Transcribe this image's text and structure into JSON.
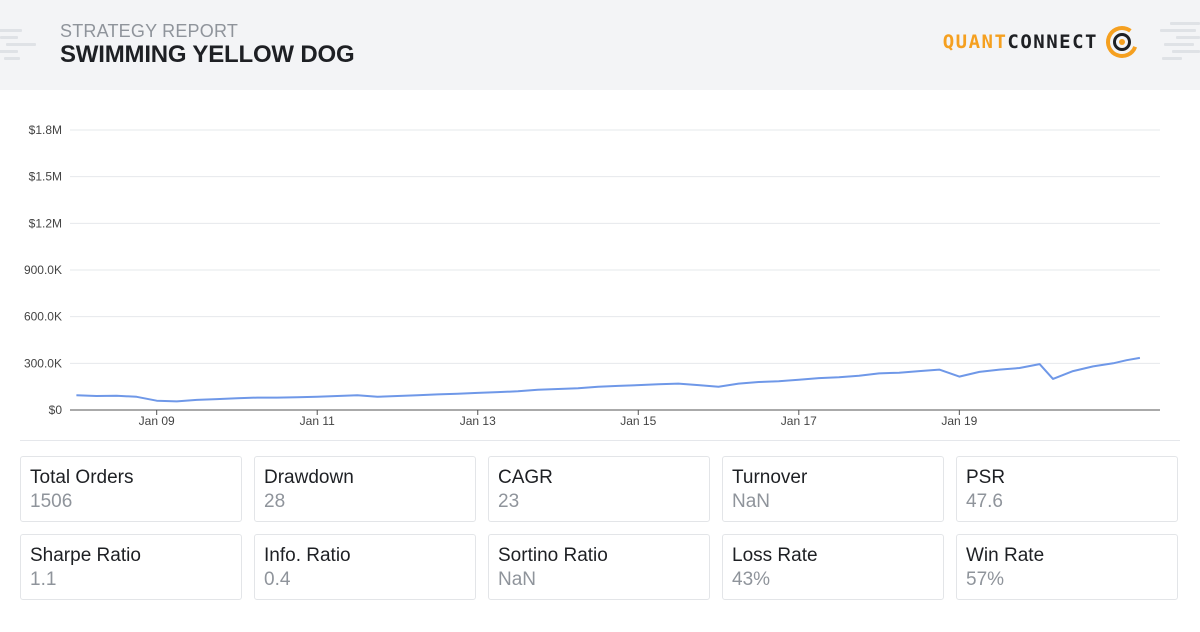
{
  "header": {
    "subtitle": "STRATEGY REPORT",
    "title": "SWIMMING YELLOW DOG",
    "logo": {
      "part1": "QUANT",
      "part2": "CONNECT",
      "icon": "quantconnect-logo-icon",
      "accent_color": "#f5a020"
    }
  },
  "chart_data": {
    "type": "line",
    "title": "",
    "xlabel": "",
    "ylabel": "",
    "ylim": [
      0,
      1800000
    ],
    "y_ticks": [
      "$0",
      "300.0K",
      "600.0K",
      "900.0K",
      "$1.2M",
      "$1.5M",
      "$1.8M"
    ],
    "x_ticks": [
      "Jan 09",
      "Jan 11",
      "Jan 13",
      "Jan 15",
      "Jan 17",
      "Jan 19"
    ],
    "grid": true,
    "line_color": "#6f98e8",
    "series": [
      {
        "x": [
          "2008-01",
          "2008-04",
          "2008-07",
          "2008-10",
          "2009-01",
          "2009-04",
          "2009-07",
          "2009-10",
          "2010-01",
          "2010-04",
          "2010-07",
          "2010-10",
          "2011-01",
          "2011-04",
          "2011-07",
          "2011-10",
          "2012-01",
          "2012-04",
          "2012-07",
          "2012-10",
          "2013-01",
          "2013-04",
          "2013-07",
          "2013-10",
          "2014-01",
          "2014-04",
          "2014-07",
          "2014-10",
          "2015-01",
          "2015-04",
          "2015-07",
          "2015-10",
          "2016-01",
          "2016-04",
          "2016-07",
          "2016-10",
          "2017-01",
          "2017-04",
          "2017-07",
          "2017-10",
          "2018-01",
          "2018-04",
          "2018-07",
          "2018-10",
          "2019-01",
          "2019-04",
          "2019-07",
          "2019-10",
          "2020-01",
          "2020-03",
          "2020-06",
          "2020-09",
          "2020-12",
          "2021-02",
          "2021-04"
        ],
        "values": [
          95000,
          90000,
          92000,
          85000,
          60000,
          55000,
          65000,
          70000,
          75000,
          80000,
          80000,
          82000,
          85000,
          90000,
          95000,
          85000,
          90000,
          95000,
          100000,
          105000,
          110000,
          115000,
          120000,
          130000,
          135000,
          140000,
          150000,
          155000,
          160000,
          165000,
          170000,
          160000,
          150000,
          170000,
          180000,
          185000,
          195000,
          205000,
          210000,
          220000,
          235000,
          240000,
          250000,
          260000,
          215000,
          245000,
          260000,
          270000,
          295000,
          200000,
          250000,
          280000,
          300000,
          320000,
          335000
        ]
      }
    ]
  },
  "metrics": [
    {
      "label": "Total Orders",
      "value": "1506"
    },
    {
      "label": "Drawdown",
      "value": "28"
    },
    {
      "label": "CAGR",
      "value": "23"
    },
    {
      "label": "Turnover",
      "value": "NaN"
    },
    {
      "label": "PSR",
      "value": "47.6"
    },
    {
      "label": "Sharpe Ratio",
      "value": "1.1"
    },
    {
      "label": "Info. Ratio",
      "value": "0.4"
    },
    {
      "label": "Sortino Ratio",
      "value": "NaN"
    },
    {
      "label": "Loss Rate",
      "value": "43%"
    },
    {
      "label": "Win Rate",
      "value": "57%"
    }
  ]
}
